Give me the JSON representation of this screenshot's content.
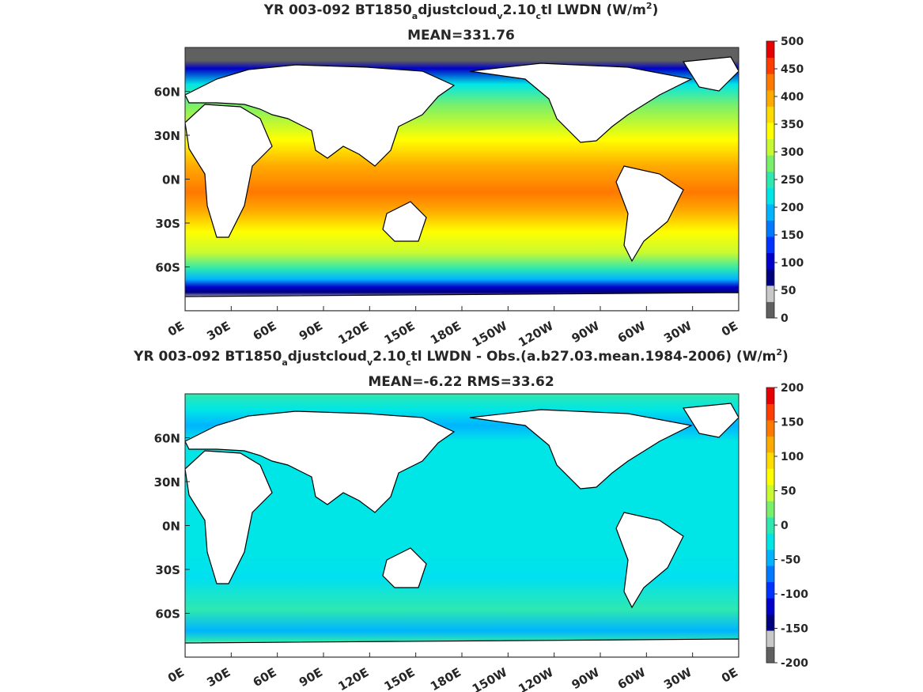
{
  "chart_data": [
    {
      "type": "heatmap",
      "title_parts": {
        "a": "YR 003-092 BT1850",
        "sub1": "a",
        "b": "djustcloud",
        "sub2": "v",
        "c": "2.10",
        "sub3": "c",
        "d": "tl LWDN (W/m",
        "sup": "2",
        "e": ")"
      },
      "subtitle": "MEAN=331.76",
      "x_ticks": [
        "0E",
        "30E",
        "60E",
        "90E",
        "120E",
        "150E",
        "180E",
        "150W",
        "120W",
        "90W",
        "60W",
        "30W",
        "0E"
      ],
      "y_ticks": [
        "60N",
        "30N",
        "0N",
        "30S",
        "60S"
      ],
      "y_values": [
        60,
        30,
        0,
        -30,
        -60
      ],
      "xlim": [
        0,
        360
      ],
      "ylim": [
        -90,
        90
      ],
      "colorbar": {
        "ticks": [
          "500",
          "450",
          "400",
          "350",
          "300",
          "250",
          "200",
          "150",
          "100",
          "50",
          "0"
        ],
        "range": [
          0,
          500
        ],
        "colors": [
          "#606060",
          "#c8c8c8",
          "#00007f",
          "#0000c8",
          "#0032ff",
          "#0078ff",
          "#00b4ff",
          "#00e6e6",
          "#2ee8b0",
          "#7af06a",
          "#c8fa32",
          "#ffff00",
          "#ffdc00",
          "#ffaa00",
          "#ff7800",
          "#ff3c00",
          "#e60000"
        ]
      },
      "mean": 331.76
    },
    {
      "type": "heatmap",
      "title_parts": {
        "a": "YR 003-092 BT1850",
        "sub1": "a",
        "b": "djustcloud",
        "sub2": "v",
        "c": "2.10",
        "sub3": "c",
        "d": "tl LWDN - Obs.(a.b27.03.mean.1984-2006) (W/m",
        "sup": "2",
        "e": ")"
      },
      "subtitle": "MEAN=-6.22 RMS=33.62",
      "x_ticks": [
        "0E",
        "30E",
        "60E",
        "90E",
        "120E",
        "150E",
        "180E",
        "150W",
        "120W",
        "90W",
        "60W",
        "30W",
        "0E"
      ],
      "y_ticks": [
        "60N",
        "30N",
        "0N",
        "30S",
        "60S"
      ],
      "y_values": [
        60,
        30,
        0,
        -30,
        -60
      ],
      "xlim": [
        0,
        360
      ],
      "ylim": [
        -90,
        90
      ],
      "colorbar": {
        "ticks": [
          "200",
          "150",
          "100",
          "50",
          "0",
          "-50",
          "-100",
          "-150",
          "-200"
        ],
        "range": [
          -200,
          200
        ],
        "colors": [
          "#606060",
          "#c8c8c8",
          "#00007f",
          "#0000c8",
          "#0032ff",
          "#0078ff",
          "#00b4ff",
          "#00e6e6",
          "#2ee8b0",
          "#7af06a",
          "#c8fa32",
          "#ffff00",
          "#ffdc00",
          "#ffaa00",
          "#ff7800",
          "#ff3c00",
          "#e60000"
        ]
      },
      "mean": -6.22,
      "rms": 33.62
    }
  ]
}
